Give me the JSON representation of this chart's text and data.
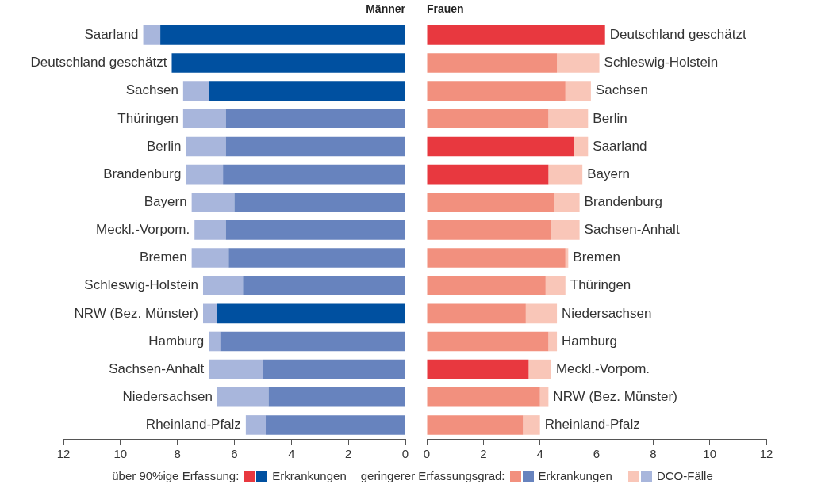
{
  "chart_data": [
    {
      "type": "bar",
      "orientation": "horizontal",
      "stacked": true,
      "title": "Männer",
      "legend": "bottom",
      "annotations": [
        "über 90%ige Erfassung:",
        "geringerer Erfassungsgrad:"
      ],
      "categories": [
        "Saarland",
        "Deutschland geschätzt",
        "Sachsen",
        "Thüringen",
        "Berlin",
        "Brandenburg",
        "Bayern",
        "Meckl.-Vorpom.",
        "Bremen",
        "Schleswig-Holstein",
        "NRW (Bez. Münster)",
        "Hamburg",
        "Sachsen-Anhalt",
        "Niedersachsen",
        "Rheinland-Pfalz"
      ],
      "xlim": [
        12,
        0
      ],
      "xticks": [
        12,
        10,
        8,
        6,
        4,
        2,
        0
      ],
      "series": [
        {
          "name": "Erkrankungen",
          "color": "#0050a0",
          "values": [
            8.6,
            8.2,
            6.9,
            null,
            null,
            null,
            null,
            null,
            null,
            null,
            6.6,
            null,
            null,
            null,
            null
          ]
        },
        {
          "name": "Erkrankungen",
          "color": "#6783be",
          "values": [
            null,
            null,
            null,
            6.3,
            6.3,
            6.4,
            6.0,
            6.3,
            6.2,
            5.7,
            null,
            6.5,
            5.0,
            4.8,
            4.9
          ]
        },
        {
          "name": "DCO-Fälle",
          "color": "#a8b6dc",
          "values": [
            0.6,
            null,
            0.9,
            1.5,
            1.4,
            1.3,
            1.5,
            1.1,
            1.3,
            1.4,
            0.5,
            0.4,
            1.9,
            1.8,
            0.7
          ]
        }
      ]
    },
    {
      "type": "bar",
      "orientation": "horizontal",
      "stacked": true,
      "title": "Frauen",
      "categories": [
        "Deutschland geschätzt",
        "Schleswig-Holstein",
        "Sachsen",
        "Berlin",
        "Saarland",
        "Bayern",
        "Brandenburg",
        "Sachsen-Anhalt",
        "Bremen",
        "Thüringen",
        "Niedersachsen",
        "Hamburg",
        "Meckl.-Vorpom.",
        "NRW (Bez. Münster)",
        "Rheinland-Pfalz"
      ],
      "xlim": [
        0,
        12
      ],
      "xticks": [
        0,
        2,
        4,
        6,
        8,
        10,
        12
      ],
      "series": [
        {
          "color": "#e8383f",
          "values": [
            6.3,
            null,
            null,
            null,
            5.2,
            4.3,
            null,
            null,
            null,
            null,
            null,
            null,
            3.6,
            null,
            null
          ]
        },
        {
          "color": "#f2907e",
          "values": [
            null,
            4.6,
            4.9,
            4.3,
            null,
            null,
            4.5,
            4.4,
            4.9,
            4.2,
            3.5,
            4.3,
            null,
            4.0,
            3.4
          ]
        },
        {
          "color": "#f9c6b8",
          "values": [
            null,
            1.5,
            0.9,
            1.4,
            0.5,
            1.2,
            0.9,
            1.0,
            0.1,
            0.7,
            1.1,
            0.3,
            0.8,
            0.3,
            0.6
          ]
        }
      ]
    }
  ]
}
